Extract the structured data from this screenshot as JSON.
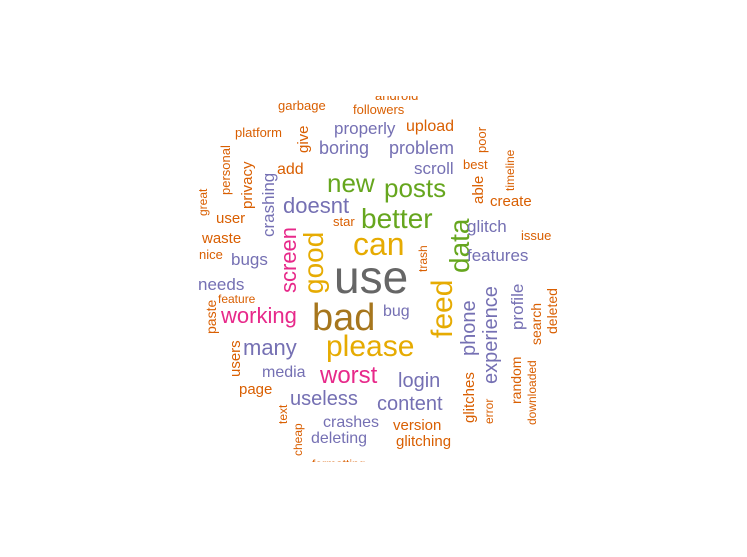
{
  "colors": {
    "dark_gray": "#666666",
    "brown": "#a6761d",
    "gold": "#e6ab02",
    "green": "#66a61e",
    "magenta": "#e7298a",
    "purple": "#7570b3",
    "orange": "#d95f02"
  },
  "words": [
    {
      "id": "use",
      "text": "use",
      "color": "#666666",
      "size": 46,
      "rotate": 0
    },
    {
      "id": "bad",
      "text": "bad",
      "color": "#a6761d",
      "size": 38,
      "rotate": 0
    },
    {
      "id": "please",
      "text": "please",
      "color": "#e6ab02",
      "size": 30,
      "rotate": 0
    },
    {
      "id": "can",
      "text": "can",
      "color": "#e6ab02",
      "size": 32,
      "rotate": 0
    },
    {
      "id": "feed",
      "text": "feed",
      "color": "#e6ab02",
      "size": 30,
      "rotate": -90
    },
    {
      "id": "good",
      "text": "good",
      "color": "#e6ab02",
      "size": 28,
      "rotate": -90
    },
    {
      "id": "better",
      "text": "better",
      "color": "#66a61e",
      "size": 28,
      "rotate": 0
    },
    {
      "id": "data",
      "text": "data",
      "color": "#66a61e",
      "size": 28,
      "rotate": -90
    },
    {
      "id": "posts",
      "text": "posts",
      "color": "#66a61e",
      "size": 26,
      "rotate": 0
    },
    {
      "id": "new",
      "text": "new",
      "color": "#66a61e",
      "size": 26,
      "rotate": 0
    },
    {
      "id": "worst",
      "text": "worst",
      "color": "#e7298a",
      "size": 24,
      "rotate": 0
    },
    {
      "id": "working",
      "text": "working",
      "color": "#e7298a",
      "size": 22,
      "rotate": 0
    },
    {
      "id": "screen",
      "text": "screen",
      "color": "#e7298a",
      "size": 22,
      "rotate": -90
    },
    {
      "id": "doesnt",
      "text": "doesnt",
      "color": "#7570b3",
      "size": 22,
      "rotate": 0
    },
    {
      "id": "many",
      "text": "many",
      "color": "#7570b3",
      "size": 22,
      "rotate": 0
    },
    {
      "id": "phone",
      "text": "phone",
      "color": "#7570b3",
      "size": 20,
      "rotate": -90
    },
    {
      "id": "experience",
      "text": "experience",
      "color": "#7570b3",
      "size": 20,
      "rotate": -90
    },
    {
      "id": "login",
      "text": "login",
      "color": "#7570b3",
      "size": 20,
      "rotate": 0
    },
    {
      "id": "useless",
      "text": "useless",
      "color": "#7570b3",
      "size": 20,
      "rotate": 0
    },
    {
      "id": "content",
      "text": "content",
      "color": "#7570b3",
      "size": 20,
      "rotate": 0
    },
    {
      "id": "posts_unused",
      "text": "",
      "color": "#7570b3",
      "size": 1,
      "rotate": 0
    },
    {
      "id": "problem",
      "text": "problem",
      "color": "#7570b3",
      "size": 18,
      "rotate": 0
    },
    {
      "id": "boring",
      "text": "boring",
      "color": "#7570b3",
      "size": 18,
      "rotate": 0
    },
    {
      "id": "properly",
      "text": "properly",
      "color": "#7570b3",
      "size": 17,
      "rotate": 0
    },
    {
      "id": "scroll",
      "text": "scroll",
      "color": "#7570b3",
      "size": 17,
      "rotate": 0
    },
    {
      "id": "crashing",
      "text": "crashing",
      "color": "#7570b3",
      "size": 17,
      "rotate": -90
    },
    {
      "id": "bugs",
      "text": "bugs",
      "color": "#7570b3",
      "size": 17,
      "rotate": 0
    },
    {
      "id": "needs",
      "text": "needs",
      "color": "#7570b3",
      "size": 17,
      "rotate": 0
    },
    {
      "id": "glitch",
      "text": "glitch",
      "color": "#7570b3",
      "size": 17,
      "rotate": 0
    },
    {
      "id": "features",
      "text": "features",
      "color": "#7570b3",
      "size": 17,
      "rotate": 0
    },
    {
      "id": "profile",
      "text": "profile",
      "color": "#7570b3",
      "size": 17,
      "rotate": -90
    },
    {
      "id": "bug",
      "text": "bug",
      "color": "#7570b3",
      "size": 16,
      "rotate": 0
    },
    {
      "id": "media",
      "text": "media",
      "color": "#7570b3",
      "size": 16,
      "rotate": 0
    },
    {
      "id": "crashes",
      "text": "crashes",
      "color": "#7570b3",
      "size": 16,
      "rotate": 0
    },
    {
      "id": "deleting",
      "text": "deleting",
      "color": "#7570b3",
      "size": 16,
      "rotate": 0
    },
    {
      "id": "glitches",
      "text": "glitches",
      "color": "#d95f02",
      "size": 15,
      "rotate": -90
    },
    {
      "id": "upload",
      "text": "upload",
      "color": "#d95f02",
      "size": 16,
      "rotate": 0
    },
    {
      "id": "add",
      "text": "add",
      "color": "#d95f02",
      "size": 16,
      "rotate": 0
    },
    {
      "id": "give",
      "text": "give",
      "color": "#d95f02",
      "size": 15,
      "rotate": -90
    },
    {
      "id": "privacy",
      "text": "privacy",
      "color": "#d95f02",
      "size": 15,
      "rotate": -90
    },
    {
      "id": "user",
      "text": "user",
      "color": "#d95f02",
      "size": 15,
      "rotate": 0
    },
    {
      "id": "waste",
      "text": "waste",
      "color": "#d95f02",
      "size": 15,
      "rotate": 0
    },
    {
      "id": "create",
      "text": "create",
      "color": "#d95f02",
      "size": 15,
      "rotate": 0
    },
    {
      "id": "able",
      "text": "able",
      "color": "#d95f02",
      "size": 15,
      "rotate": -90
    },
    {
      "id": "random",
      "text": "random",
      "color": "#d95f02",
      "size": 14,
      "rotate": -90
    },
    {
      "id": "search",
      "text": "search",
      "color": "#d95f02",
      "size": 14,
      "rotate": -90
    },
    {
      "id": "deleted",
      "text": "deleted",
      "color": "#d95f02",
      "size": 14,
      "rotate": -90
    },
    {
      "id": "version",
      "text": "version",
      "color": "#d95f02",
      "size": 15,
      "rotate": 0
    },
    {
      "id": "glitching",
      "text": "glitching",
      "color": "#d95f02",
      "size": 15,
      "rotate": 0
    },
    {
      "id": "page",
      "text": "page",
      "color": "#d95f02",
      "size": 15,
      "rotate": 0
    },
    {
      "id": "users",
      "text": "users",
      "color": "#d95f02",
      "size": 15,
      "rotate": -90
    },
    {
      "id": "paste",
      "text": "paste",
      "color": "#d95f02",
      "size": 14,
      "rotate": -90
    },
    {
      "id": "best",
      "text": "best",
      "color": "#d95f02",
      "size": 13,
      "rotate": 0
    },
    {
      "id": "poor",
      "text": "poor",
      "color": "#d95f02",
      "size": 13,
      "rotate": -90
    },
    {
      "id": "timeline",
      "text": "timeline",
      "color": "#d95f02",
      "size": 12,
      "rotate": -90
    },
    {
      "id": "issue",
      "text": "issue",
      "color": "#d95f02",
      "size": 13,
      "rotate": 0
    },
    {
      "id": "platform",
      "text": "platform",
      "color": "#d95f02",
      "size": 13,
      "rotate": 0
    },
    {
      "id": "personal",
      "text": "personal",
      "color": "#d95f02",
      "size": 13,
      "rotate": -90
    },
    {
      "id": "great",
      "text": "great",
      "color": "#d95f02",
      "size": 12,
      "rotate": -90
    },
    {
      "id": "nice",
      "text": "nice",
      "color": "#d95f02",
      "size": 13,
      "rotate": 0
    },
    {
      "id": "feature",
      "text": "feature",
      "color": "#d95f02",
      "size": 12,
      "rotate": 0
    },
    {
      "id": "garbage",
      "text": "garbage",
      "color": "#d95f02",
      "size": 13,
      "rotate": 0
    },
    {
      "id": "followers",
      "text": "followers",
      "color": "#d95f02",
      "size": 13,
      "rotate": 0
    },
    {
      "id": "android",
      "text": "android",
      "color": "#d95f02",
      "size": 13,
      "rotate": 0
    },
    {
      "id": "star",
      "text": "star",
      "color": "#d95f02",
      "size": 13,
      "rotate": 0
    },
    {
      "id": "trash",
      "text": "trash",
      "color": "#d95f02",
      "size": 12,
      "rotate": -90
    },
    {
      "id": "error",
      "text": "error",
      "color": "#d95f02",
      "size": 12,
      "rotate": -90
    },
    {
      "id": "downloaded",
      "text": "downloaded",
      "color": "#d95f02",
      "size": 12,
      "rotate": -90
    },
    {
      "id": "text",
      "text": "text",
      "color": "#d95f02",
      "size": 12,
      "rotate": -90
    },
    {
      "id": "cheap",
      "text": "cheap",
      "color": "#d95f02",
      "size": 12,
      "rotate": -90
    },
    {
      "id": "formatting",
      "text": "formatting",
      "color": "#d95f02",
      "size": 12,
      "rotate": 0
    }
  ]
}
